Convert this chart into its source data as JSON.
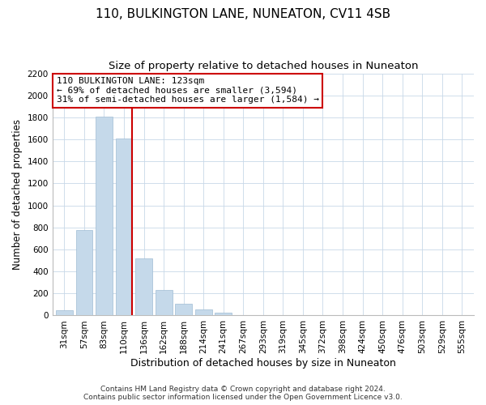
{
  "title": "110, BULKINGTON LANE, NUNEATON, CV11 4SB",
  "subtitle": "Size of property relative to detached houses in Nuneaton",
  "xlabel": "Distribution of detached houses by size in Nuneaton",
  "ylabel": "Number of detached properties",
  "categories": [
    "31sqm",
    "57sqm",
    "83sqm",
    "110sqm",
    "136sqm",
    "162sqm",
    "188sqm",
    "214sqm",
    "241sqm",
    "267sqm",
    "293sqm",
    "319sqm",
    "345sqm",
    "372sqm",
    "398sqm",
    "424sqm",
    "450sqm",
    "476sqm",
    "503sqm",
    "529sqm",
    "555sqm"
  ],
  "values": [
    50,
    775,
    1810,
    1610,
    520,
    230,
    105,
    55,
    25,
    0,
    0,
    0,
    0,
    0,
    0,
    0,
    0,
    0,
    0,
    0,
    0
  ],
  "bar_color": "#c5d9ea",
  "bar_edge_color": "#a0bcd4",
  "highlight_index": 3,
  "highlight_color": "#cc0000",
  "annotation_line1": "110 BULKINGTON LANE: 123sqm",
  "annotation_line2": "← 69% of detached houses are smaller (3,594)",
  "annotation_line3": "31% of semi-detached houses are larger (1,584) →",
  "annotation_box_color": "#ffffff",
  "annotation_box_edge": "#cc0000",
  "ylim": [
    0,
    2200
  ],
  "yticks": [
    0,
    200,
    400,
    600,
    800,
    1000,
    1200,
    1400,
    1600,
    1800,
    2000,
    2200
  ],
  "footer_line1": "Contains HM Land Registry data © Crown copyright and database right 2024.",
  "footer_line2": "Contains public sector information licensed under the Open Government Licence v3.0.",
  "title_fontsize": 11,
  "subtitle_fontsize": 9.5,
  "xlabel_fontsize": 9,
  "ylabel_fontsize": 8.5,
  "tick_fontsize": 7.5,
  "annotation_fontsize": 8,
  "footer_fontsize": 6.5
}
